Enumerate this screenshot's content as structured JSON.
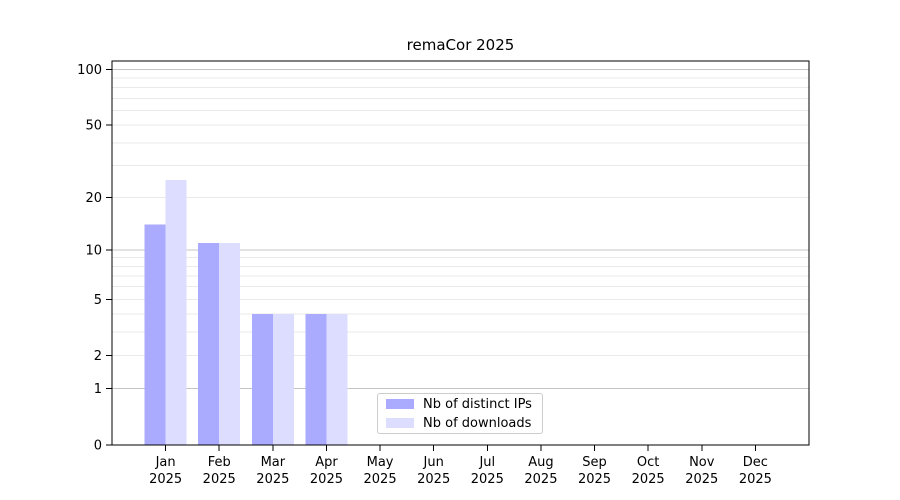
{
  "title": "remaCor 2025",
  "colors": {
    "ips_bar": "#aaaaff",
    "downloads_bar": "#ddddff",
    "grid_minor": "#e9e9e9",
    "grid_major": "#c4c4c4",
    "axis": "#000000",
    "legend_border": "#cccccc",
    "background": "#ffffff"
  },
  "x_axis": {
    "months": [
      "Jan",
      "Feb",
      "Mar",
      "Apr",
      "May",
      "Jun",
      "Jul",
      "Aug",
      "Sep",
      "Oct",
      "Nov",
      "Dec"
    ],
    "year": "2025"
  },
  "y_axis": {
    "tick_values": [
      0,
      1,
      2,
      5,
      10,
      20,
      50,
      100
    ],
    "minor_grid_values": [
      2,
      3,
      4,
      5,
      6,
      7,
      8,
      9,
      20,
      30,
      40,
      50,
      60,
      70,
      80,
      90
    ],
    "major_grid_values": [
      1,
      10,
      100
    ]
  },
  "legend": {
    "items": [
      "Nb of distinct IPs",
      "Nb of downloads"
    ]
  },
  "chart_data": {
    "type": "bar",
    "title": "remaCor 2025",
    "categories": [
      "Jan 2025",
      "Feb 2025",
      "Mar 2025",
      "Apr 2025",
      "May 2025",
      "Jun 2025",
      "Jul 2025",
      "Aug 2025",
      "Sep 2025",
      "Oct 2025",
      "Nov 2025",
      "Dec 2025"
    ],
    "series": [
      {
        "name": "Nb of distinct IPs",
        "color": "#aaaaff",
        "values": [
          14,
          11,
          4,
          4,
          0,
          0,
          0,
          0,
          0,
          0,
          0,
          0
        ]
      },
      {
        "name": "Nb of downloads",
        "color": "#ddddff",
        "values": [
          25,
          11,
          4,
          4,
          0,
          0,
          0,
          0,
          0,
          0,
          0,
          0
        ]
      }
    ],
    "xlabel": "",
    "ylabel": "",
    "yscale": "log10(1+value)",
    "yticks": [
      0,
      1,
      2,
      5,
      10,
      20,
      50,
      100
    ],
    "ylim": [
      0,
      111
    ],
    "grid": "horizontal",
    "legend_position": "inside-bottom-center"
  }
}
